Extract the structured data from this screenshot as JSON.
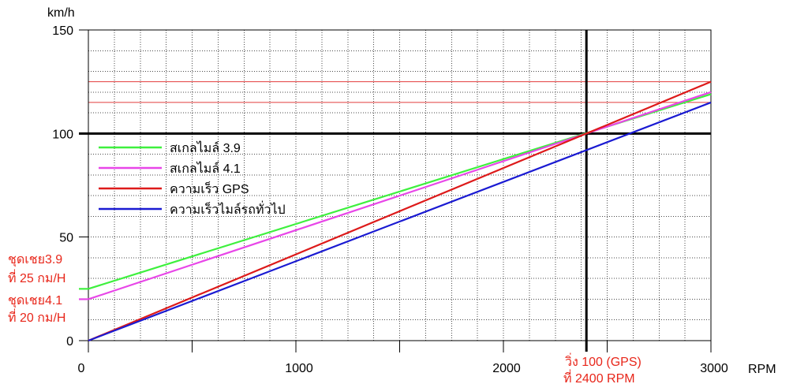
{
  "chart_data": {
    "type": "line",
    "xlabel": "RPM",
    "ylabel": "km/h",
    "xlim": [
      0,
      3000
    ],
    "ylim": [
      0,
      150
    ],
    "xticks": [
      0,
      1000,
      2000,
      3000
    ],
    "yticks": [
      0,
      50,
      100,
      150
    ],
    "grid": true,
    "legend": "left",
    "series": [
      {
        "name": "สเกลไมล์ 3.9",
        "color": "#3ef03e",
        "x": [
          0,
          3000
        ],
        "y": [
          25,
          119
        ]
      },
      {
        "name": "สเกลไมล์ 4.1",
        "color": "#e846e8",
        "x": [
          0,
          3000
        ],
        "y": [
          20,
          120
        ]
      },
      {
        "name": "ความเร็ว GPS",
        "color": "#dd1a1a",
        "x": [
          0,
          3000
        ],
        "y": [
          0,
          125
        ]
      },
      {
        "name": "ความเร็วไมล์รถทั่วไป",
        "color": "#1a1ad2",
        "x": [
          0,
          3000
        ],
        "y": [
          0,
          115
        ]
      }
    ],
    "crosshair": {
      "x": 2400,
      "y": 100,
      "color": "#000000"
    },
    "limit_lines": {
      "y": [
        125,
        115
      ],
      "color": "#e23c3c"
    },
    "annotations": {
      "color": "#e8261a",
      "offset_3_9": {
        "line1": "ชุดเชย3.9",
        "line2": "ที่ 25 กม/H"
      },
      "offset_4_1": {
        "line1": "ชุดเชย4.1",
        "line2": "ที่ 20 กม/H"
      },
      "crossover": {
        "line1": "วิ่ง 100 (GPS)",
        "line2": "ที่ 2400 RPM"
      }
    }
  }
}
